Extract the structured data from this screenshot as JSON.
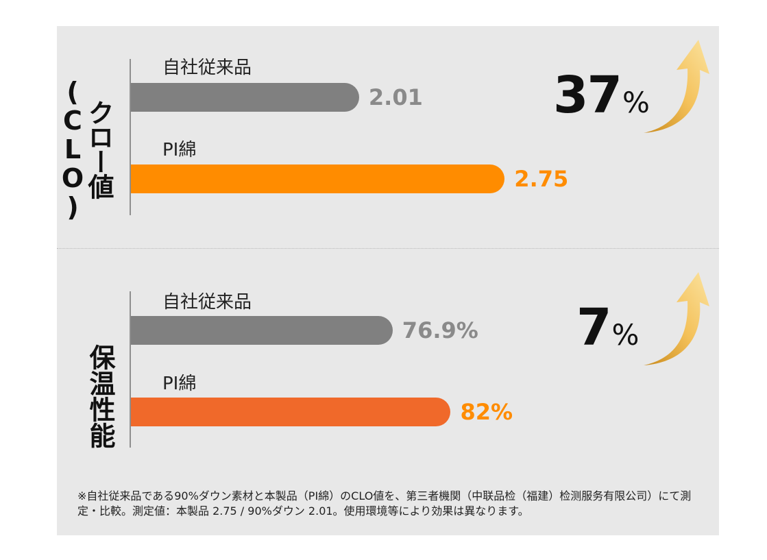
{
  "colors": {
    "background": "#e8e8e8",
    "bar_gray": "#808080",
    "bar_orange": "#ff8c00",
    "bar_orange_2": "#f0692a",
    "value_gray": "#8a8a8a",
    "value_orange": "#ff8c00",
    "arrow_gold": "#e0a63c"
  },
  "chart_data": [
    {
      "type": "bar",
      "orientation": "horizontal",
      "ylabel": "クロー値(CLO)",
      "categories": [
        "自社従来品",
        "PI綿"
      ],
      "values": [
        2.01,
        2.75
      ],
      "value_labels": [
        "2.01",
        "2.75"
      ],
      "xlim": [
        0,
        3.4
      ],
      "increase_label": {
        "number": "37",
        "unit": "%"
      },
      "bar_colors": [
        "#808080",
        "#ff8c00"
      ],
      "grid": false
    },
    {
      "type": "bar",
      "orientation": "horizontal",
      "ylabel": "保温性能",
      "categories": [
        "自社従来品",
        "PI綿"
      ],
      "values": [
        76.9,
        82
      ],
      "value_labels": [
        "76.9%",
        "82%"
      ],
      "xlim": [
        0,
        100
      ],
      "increase_label": {
        "number": "7",
        "unit": "%"
      },
      "bar_colors": [
        "#808080",
        "#f0692a"
      ],
      "grid": false
    }
  ],
  "footnote": "※自社従来品である90%ダウン素材と本製品（PI綿）のCLO値を、第三者機関（中联品检（福建）检测服务有限公司）にて測定・比較。測定値：本製品 2.75 / 90%ダウン 2.01。使用環境等により効果は異なります。",
  "icons": [
    "up-arrow-icon"
  ]
}
